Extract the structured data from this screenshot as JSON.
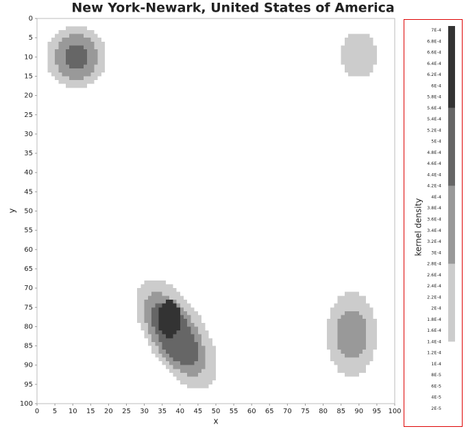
{
  "chart_data": {
    "type": "density",
    "title": "New York-Newark, United States of America",
    "xlabel": "x",
    "ylabel": "y",
    "colorbar_label": "kernel density",
    "xlim": [
      0,
      100
    ],
    "ylim": [
      100,
      0
    ],
    "xticks": [
      0,
      5,
      10,
      15,
      20,
      25,
      30,
      35,
      40,
      45,
      50,
      55,
      60,
      65,
      70,
      75,
      80,
      85,
      90,
      95,
      100
    ],
    "yticks": [
      0,
      5,
      10,
      15,
      20,
      25,
      30,
      35,
      40,
      45,
      50,
      55,
      60,
      65,
      70,
      75,
      80,
      85,
      90,
      95,
      100
    ],
    "levels": [
      0.00014,
      0.00028,
      0.00042,
      0.00056,
      0.0007
    ],
    "colors": [
      "#cccccc",
      "#999999",
      "#666666",
      "#333333"
    ],
    "contours": [
      {
        "level": 0.00014,
        "cx": 11,
        "cy": 10,
        "rx": 8.5,
        "ry": 8,
        "angle": 0
      },
      {
        "level": 0.00014,
        "cx": 90,
        "cy": 9.5,
        "rx": 5,
        "ry": 6,
        "angle": 0
      },
      {
        "level": 0.00014,
        "cx": 39,
        "cy": 82,
        "rx": 16.5,
        "ry": 8,
        "angle": 56
      },
      {
        "level": 0.00014,
        "cx": 88,
        "cy": 82,
        "rx": 7,
        "ry": 11,
        "angle": 0
      },
      {
        "level": 0.00028,
        "cx": 11,
        "cy": 10,
        "rx": 6,
        "ry": 6,
        "angle": 0
      },
      {
        "level": 0.00028,
        "cx": 38.5,
        "cy": 82,
        "rx": 12.5,
        "ry": 6,
        "angle": 56
      },
      {
        "level": 0.00028,
        "cx": 88,
        "cy": 82,
        "rx": 4.5,
        "ry": 6.5,
        "angle": 0
      },
      {
        "level": 0.00042,
        "cx": 11,
        "cy": 10,
        "rx": 3,
        "ry": 3.5,
        "angle": 0
      },
      {
        "level": 0.00042,
        "cx": 38.5,
        "cy": 82,
        "rx": 9.5,
        "ry": 4.5,
        "angle": 56
      },
      {
        "level": 0.00056,
        "cx": 37,
        "cy": 78,
        "rx": 3.2,
        "ry": 4.8,
        "angle": 0
      }
    ],
    "clim": [
      2e-05,
      0.0007
    ],
    "cticks": [
      {
        "value": 2e-05,
        "label": "2E-5"
      },
      {
        "value": 4e-05,
        "label": "4E-5"
      },
      {
        "value": 6e-05,
        "label": "6E-5"
      },
      {
        "value": 8e-05,
        "label": "8E-5"
      },
      {
        "value": 0.0001,
        "label": "1E-4"
      },
      {
        "value": 0.00012,
        "label": "1.2E-4"
      },
      {
        "value": 0.00014,
        "label": "1.4E-4"
      },
      {
        "value": 0.00016,
        "label": "1.6E-4"
      },
      {
        "value": 0.00018,
        "label": "1.8E-4"
      },
      {
        "value": 0.0002,
        "label": "2E-4"
      },
      {
        "value": 0.00022,
        "label": "2.2E-4"
      },
      {
        "value": 0.00024,
        "label": "2.4E-4"
      },
      {
        "value": 0.00026,
        "label": "2.6E-4"
      },
      {
        "value": 0.00028,
        "label": "2.8E-4"
      },
      {
        "value": 0.0003,
        "label": "3E-4"
      },
      {
        "value": 0.00032,
        "label": "3.2E-4"
      },
      {
        "value": 0.00034,
        "label": "3.4E-4"
      },
      {
        "value": 0.00036,
        "label": "3.6E-4"
      },
      {
        "value": 0.00038,
        "label": "3.8E-4"
      },
      {
        "value": 0.0004,
        "label": "4E-4"
      },
      {
        "value": 0.00042,
        "label": "4.2E-4"
      },
      {
        "value": 0.00044,
        "label": "4.4E-4"
      },
      {
        "value": 0.00046,
        "label": "4.6E-4"
      },
      {
        "value": 0.00048,
        "label": "4.8E-4"
      },
      {
        "value": 0.0005,
        "label": "5E-4"
      },
      {
        "value": 0.00052,
        "label": "5.2E-4"
      },
      {
        "value": 0.00054,
        "label": "5.4E-4"
      },
      {
        "value": 0.00056,
        "label": "5.6E-4"
      },
      {
        "value": 0.00058,
        "label": "5.8E-4"
      },
      {
        "value": 0.0006,
        "label": "6E-4"
      },
      {
        "value": 0.00062,
        "label": "6.2E-4"
      },
      {
        "value": 0.00064,
        "label": "6.4E-4"
      },
      {
        "value": 0.00066,
        "label": "6.6E-4"
      },
      {
        "value": 0.00068,
        "label": "6.8E-4"
      },
      {
        "value": 0.0007,
        "label": "7E-4"
      }
    ]
  }
}
